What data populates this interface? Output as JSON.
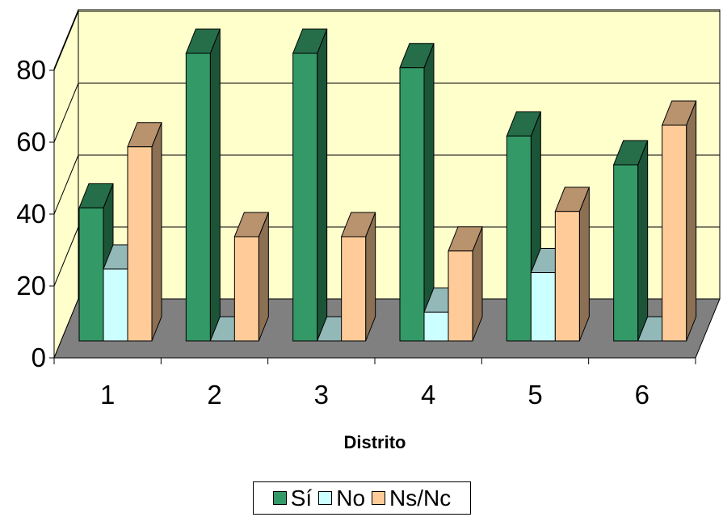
{
  "chart_data": {
    "type": "bar",
    "categories": [
      "1",
      "2",
      "3",
      "4",
      "5",
      "6"
    ],
    "series": [
      {
        "name": "Sí",
        "color": "#339966",
        "values": [
          37,
          80,
          80,
          76,
          57,
          49
        ]
      },
      {
        "name": "No",
        "color": "#ccffff",
        "values": [
          20,
          0,
          0,
          8,
          19,
          0
        ]
      },
      {
        "name": "Ns/Nc",
        "color": "#ffcc99",
        "values": [
          54,
          29,
          29,
          25,
          36,
          60
        ]
      }
    ],
    "y_ticks": [
      "0",
      "20",
      "40",
      "60",
      "80"
    ],
    "ylim": [
      0,
      90
    ],
    "xlabel": "Distrito",
    "ylabel": "",
    "title": "",
    "grid": true,
    "legend_position": "bottom",
    "wall_color": "#ffffcc",
    "floor_color": "#808080"
  }
}
